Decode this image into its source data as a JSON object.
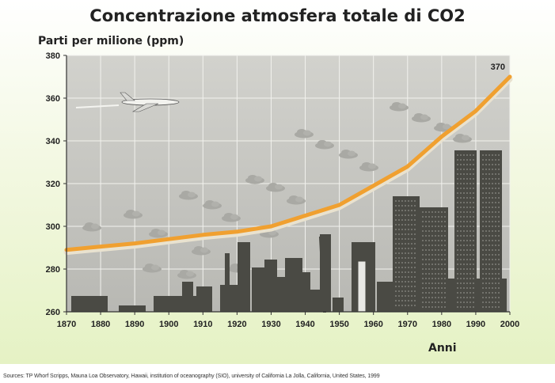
{
  "chart_data": {
    "type": "line",
    "title": "Concentrazione atmosfera totale di CO2",
    "ylabel": "Parti per milione (ppm)",
    "xlabel": "Anni",
    "x": [
      1870,
      1880,
      1890,
      1900,
      1910,
      1920,
      1930,
      1940,
      1950,
      1960,
      1970,
      1980,
      1990,
      2000
    ],
    "xticks": [
      1870,
      1880,
      1890,
      1900,
      1910,
      1920,
      1930,
      1940,
      1950,
      1960,
      1970,
      1980,
      1990,
      2000
    ],
    "yticks": [
      260,
      280,
      300,
      320,
      340,
      360,
      380
    ],
    "xlim": [
      1870,
      2000
    ],
    "ylim": [
      260,
      380
    ],
    "grid": true,
    "series": [
      {
        "values": [
          289,
          290.5,
          292,
          294,
          296,
          297.5,
          300,
          305,
          310,
          319,
          328,
          342,
          354,
          370
        ],
        "color": "#f0a030"
      }
    ],
    "annotations": [
      {
        "x": 2000,
        "y": 370,
        "text": "370"
      }
    ]
  },
  "source_text": "Sources: TP Whorf  Scripps, Mauna Loa Observatory, Hawaii, institution of oceanography (SIO), university of California La Jolla, California, United States, 1999",
  "colors": {
    "plot_background": "#c9c9c4",
    "grid": "#f2f2ee",
    "line": "#f0a030",
    "skyline": "#4a4a44"
  }
}
